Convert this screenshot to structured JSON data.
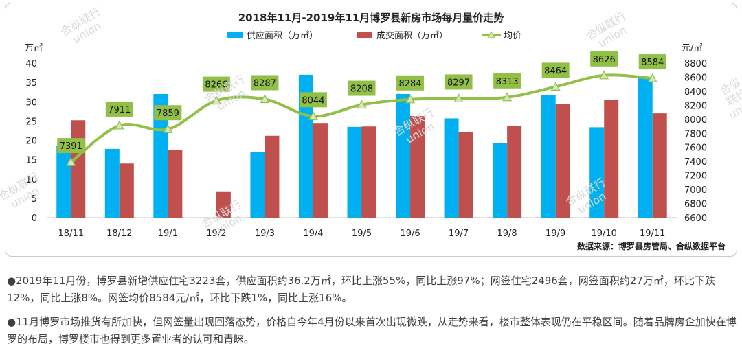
{
  "chart_data": {
    "type": "bar+line",
    "title": "2018年11月-2019年11月博罗县新房市场每月量价走势",
    "left_unit": "万㎡",
    "right_unit": "元/㎡",
    "categories": [
      "18/11",
      "18/12",
      "19/1",
      "19/2",
      "19/3",
      "19/4",
      "19/5",
      "19/6",
      "19/7",
      "19/8",
      "19/9",
      "19/10",
      "19/11"
    ],
    "left_ylim": [
      0,
      40
    ],
    "left_ticks": [
      "0",
      "5",
      "10",
      "15",
      "20",
      "25",
      "30",
      "35",
      "40"
    ],
    "right_ylim": [
      6600,
      8800
    ],
    "right_ticks": [
      "6600",
      "6800",
      "7000",
      "7200",
      "7400",
      "7600",
      "7800",
      "8000",
      "8200",
      "8400",
      "8600",
      "8800"
    ],
    "series": [
      {
        "name": "供应面积（万㎡）",
        "type": "bar",
        "color": "#00b0f0",
        "values": [
          18.5,
          17.8,
          32,
          0,
          17,
          37,
          23.5,
          32,
          25.7,
          19.3,
          31.8,
          23.4,
          36.2
        ]
      },
      {
        "name": "成交面积（万㎡）",
        "type": "bar",
        "color": "#c0504d",
        "values": [
          25.2,
          14,
          17.5,
          6.8,
          21.2,
          24.5,
          23.6,
          26.3,
          22.2,
          23.8,
          29.4,
          30.5,
          27
        ]
      },
      {
        "name": "均价",
        "type": "line",
        "axis": "right",
        "color": "#92c047",
        "values": [
          7391,
          7911,
          7859,
          8266,
          8287,
          8044,
          8208,
          8284,
          8297,
          8313,
          8464,
          8626,
          8584
        ]
      }
    ],
    "grid": false,
    "legend_position": "top"
  },
  "source": "数据来源：博罗县房管局、合纵数据平台",
  "watermark": {
    "line1": "合纵联行",
    "line2": "union"
  },
  "paragraphs": [
    "●2019年11月份，博罗县新增供应住宅3223套，供应面积约36.2万㎡，环比上涨55%，同比上涨97%；网签住宅2496套，网签面积约27万㎡，环比下跌12%，同比上涨8%。网签均价8584元/㎡，环比下跌1%，同比上涨16%。",
    "●11月博罗市场推货有所加快，但网签量出现回落态势，价格自今年4月份以来首次出现微跌，从走势来看，楼市整体表现仍在平稳区间。随着品牌房企加快在博罗的布局，博罗楼市也得到更多置业者的认可和青睐。"
  ]
}
